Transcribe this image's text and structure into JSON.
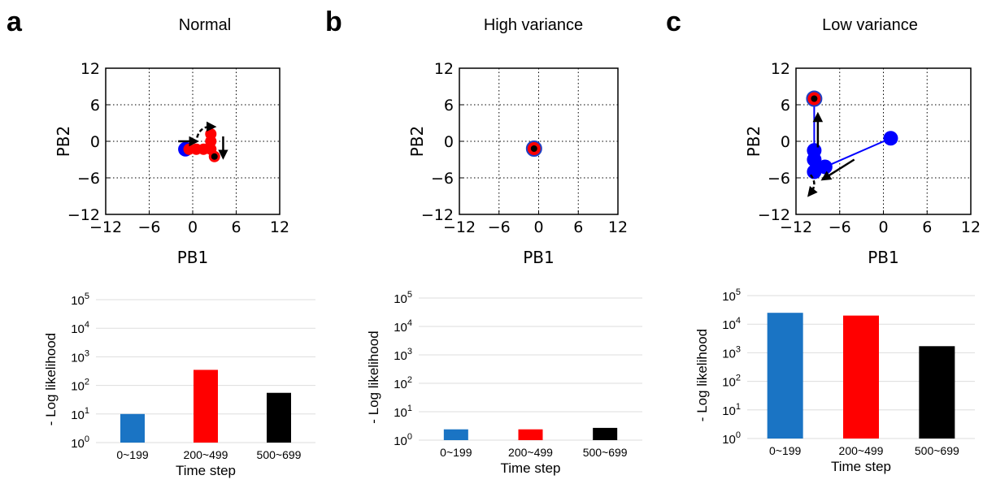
{
  "panels": [
    {
      "letter": "a",
      "title": "Normal",
      "scatter": {
        "xlabel": "PB1",
        "ylabel": "PB2",
        "xlim": [
          -12,
          12
        ],
        "ylim": [
          -12,
          12
        ],
        "ticks": [
          -12,
          -6,
          0,
          6,
          12
        ],
        "tick_labels": [
          "−12",
          "−6",
          "0",
          "6",
          "12"
        ],
        "grid": true,
        "blue_points": [
          [
            -1,
            -1.3
          ]
        ],
        "blue_segments": [],
        "red_points": [
          [
            -0.5,
            -1.3
          ],
          [
            0.5,
            -1.3
          ],
          [
            1.5,
            -1.3
          ],
          [
            2.5,
            -1.3
          ],
          [
            2.5,
            0
          ],
          [
            2.5,
            1.2
          ],
          [
            3,
            -2.5
          ]
        ],
        "red_segments": [
          [
            [
              -1,
              -1.3
            ],
            [
              2.5,
              -1.3
            ]
          ],
          [
            [
              2.5,
              -1.3
            ],
            [
              2.5,
              1.3
            ]
          ],
          [
            [
              2.5,
              -1.3
            ],
            [
              3,
              -2.5
            ]
          ]
        ],
        "black_dot": [
          3,
          -2.5
        ],
        "blue_ring": null,
        "arrows": [
          {
            "from": [
              -2,
              0
            ],
            "to": [
              0.2,
              0
            ]
          },
          {
            "from": [
              0.6,
              0.6
            ],
            "to": [
              2.6,
              2.4
            ],
            "curved": true
          },
          {
            "from": [
              4.2,
              0.8
            ],
            "to": [
              4.2,
              -2.2
            ]
          }
        ]
      },
      "bar": {
        "type": "bar",
        "xlabel": "Time step",
        "ylabel": "- Log likelihood",
        "yscale": "log",
        "ylim": [
          1,
          100000
        ],
        "ytick_exponents": [
          0,
          1,
          2,
          3,
          4,
          5
        ],
        "categories": [
          "0~199",
          "200~499",
          "500~699"
        ],
        "values": [
          10,
          350,
          55
        ],
        "colors": [
          "#1a74c4",
          "#ff0000",
          "#000000"
        ]
      }
    },
    {
      "letter": "b",
      "title": "High variance",
      "scatter": {
        "xlabel": "PB1",
        "ylabel": "PB2",
        "xlim": [
          -12,
          12
        ],
        "ylim": [
          -12,
          12
        ],
        "ticks": [
          -12,
          -6,
          0,
          6,
          12
        ],
        "tick_labels": [
          "−12",
          "−6",
          "0",
          "6",
          "12"
        ],
        "grid": true,
        "blue_points": [],
        "blue_segments": [],
        "red_points": [],
        "red_segments": [],
        "black_dot": [
          -0.7,
          -1.2
        ],
        "blue_ring": [
          -0.7,
          -1.2
        ],
        "arrows": []
      },
      "bar": {
        "type": "bar",
        "xlabel": "Time step",
        "ylabel": "- Log likelihood",
        "yscale": "log",
        "ylim": [
          1,
          100000
        ],
        "ytick_exponents": [
          0,
          1,
          2,
          3,
          4,
          5
        ],
        "categories": [
          "0~199",
          "200~499",
          "500~699"
        ],
        "values": [
          2.4,
          2.4,
          2.7
        ],
        "colors": [
          "#1a74c4",
          "#ff0000",
          "#000000"
        ]
      }
    },
    {
      "letter": "c",
      "title": "Low variance",
      "scatter": {
        "xlabel": "PB1",
        "ylabel": "PB2",
        "xlim": [
          -12,
          12
        ],
        "ylim": [
          -12,
          12
        ],
        "ticks": [
          -12,
          -6,
          0,
          6,
          12
        ],
        "tick_labels": [
          "−12",
          "−6",
          "0",
          "6",
          "12"
        ],
        "grid": true,
        "blue_points": [
          [
            1,
            0.5
          ],
          [
            -8,
            -4.2
          ],
          [
            -9.5,
            -5
          ],
          [
            -9.5,
            -3
          ],
          [
            -9.5,
            -1.5
          ]
        ],
        "blue_segments": [
          [
            [
              1,
              0.5
            ],
            [
              -8,
              -4.2
            ]
          ],
          [
            [
              -9.5,
              -5
            ],
            [
              -9.5,
              7
            ]
          ]
        ],
        "red_points": [],
        "red_segments": [],
        "black_dot": [
          -9.5,
          7
        ],
        "blue_ring": [
          -9.5,
          7
        ],
        "arrows": [
          {
            "from": [
              -9,
              -1
            ],
            "to": [
              -9,
              4
            ]
          },
          {
            "from": [
              -4,
              -3
            ],
            "to": [
              -8,
              -6
            ]
          },
          {
            "from": [
              -10,
              -5.5
            ],
            "to": [
              -10,
              -8.5
            ],
            "curved": true
          }
        ]
      },
      "bar": {
        "type": "bar",
        "xlabel": "Time step",
        "ylabel": "- Log likelihood",
        "yscale": "log",
        "ylim": [
          1,
          100000
        ],
        "ytick_exponents": [
          0,
          1,
          2,
          3,
          4,
          5
        ],
        "categories": [
          "0~199",
          "200~499",
          "500~699"
        ],
        "values": [
          25000,
          20000,
          1700
        ],
        "colors": [
          "#1a74c4",
          "#ff0000",
          "#000000"
        ]
      }
    }
  ],
  "chart_data": [
    {
      "type": "scatter",
      "title": "Normal",
      "xlabel": "PB1",
      "ylabel": "PB2",
      "xlim": [
        -12,
        12
      ],
      "ylim": [
        -12,
        12
      ],
      "grid": true
    },
    {
      "type": "scatter",
      "title": "High variance",
      "xlabel": "PB1",
      "ylabel": "PB2",
      "xlim": [
        -12,
        12
      ],
      "ylim": [
        -12,
        12
      ],
      "grid": true
    },
    {
      "type": "scatter",
      "title": "Low variance",
      "xlabel": "PB1",
      "ylabel": "PB2",
      "xlim": [
        -12,
        12
      ],
      "ylim": [
        -12,
        12
      ],
      "grid": true
    },
    {
      "type": "bar",
      "categories": [
        "0~199",
        "200~499",
        "500~699"
      ],
      "values": [
        10,
        350,
        55
      ],
      "xlabel": "Time step",
      "ylabel": "- Log likelihood",
      "ylim": [
        1,
        100000
      ]
    },
    {
      "type": "bar",
      "categories": [
        "0~199",
        "200~499",
        "500~699"
      ],
      "values": [
        2.4,
        2.4,
        2.7
      ],
      "xlabel": "Time step",
      "ylabel": "- Log likelihood",
      "ylim": [
        1,
        100000
      ]
    },
    {
      "type": "bar",
      "categories": [
        "0~199",
        "200~499",
        "500~699"
      ],
      "values": [
        25000,
        20000,
        1700
      ],
      "xlabel": "Time step",
      "ylabel": "- Log likelihood",
      "ylim": [
        1,
        100000
      ]
    }
  ]
}
